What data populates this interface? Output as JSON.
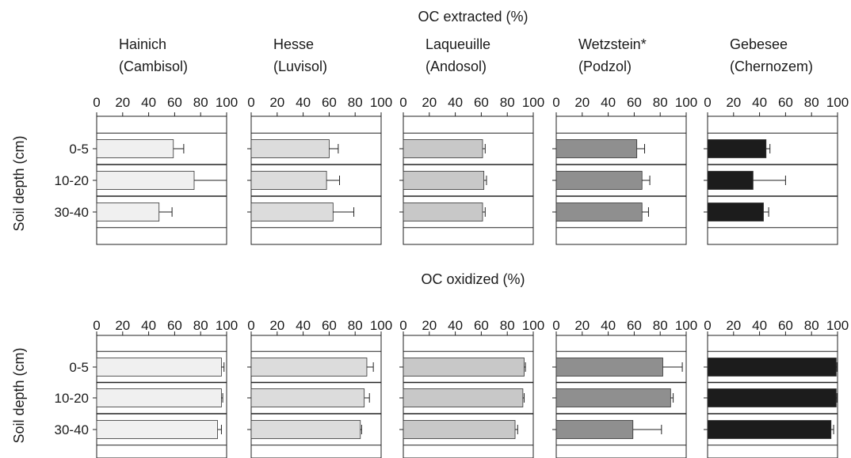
{
  "chart_data": {
    "type": "bar",
    "orientation": "horizontal",
    "ylabel": "Soil depth (cm)",
    "categories": [
      "0-5",
      "10-20",
      "30-40"
    ],
    "xlim": [
      0,
      100
    ],
    "xticks": [
      "0",
      "20",
      "40",
      "60",
      "80",
      "100"
    ],
    "sites": [
      {
        "name": "Hainich",
        "soil": "(Cambisol)",
        "color": "#f0f0f0"
      },
      {
        "name": "Hesse",
        "soil": "(Luvisol)",
        "color": "#dcdcdc"
      },
      {
        "name": "Laqueuille",
        "soil": "(Andosol)",
        "color": "#c8c8c8"
      },
      {
        "name": "Wetzstein*",
        "soil": "(Podzol)",
        "color": "#8f8f8f"
      },
      {
        "name": "Gebesee",
        "soil": "(Chernozem)",
        "color": "#1c1c1c"
      }
    ],
    "panels": [
      {
        "title": "OC extracted (%)",
        "series": [
          {
            "name": "Hainich",
            "values": [
              59,
              75,
              48
            ],
            "errors": [
              8,
              25,
              10
            ]
          },
          {
            "name": "Hesse",
            "values": [
              60,
              58,
              63
            ],
            "errors": [
              7,
              10,
              16
            ]
          },
          {
            "name": "Laqueuille",
            "values": [
              61,
              62,
              61
            ],
            "errors": [
              2,
              2,
              2
            ]
          },
          {
            "name": "Wetzstein*",
            "values": [
              62,
              66,
              66
            ],
            "errors": [
              6,
              6,
              5
            ]
          },
          {
            "name": "Gebesee",
            "values": [
              45,
              35,
              43
            ],
            "errors": [
              3,
              25,
              4
            ]
          }
        ]
      },
      {
        "title": "OC oxidized (%)",
        "series": [
          {
            "name": "Hainich",
            "values": [
              96,
              96,
              93
            ],
            "errors": [
              2,
              1,
              3
            ]
          },
          {
            "name": "Hesse",
            "values": [
              89,
              87,
              84
            ],
            "errors": [
              5,
              4,
              1
            ]
          },
          {
            "name": "Laqueuille",
            "values": [
              93,
              92,
              86
            ],
            "errors": [
              1,
              1,
              2
            ]
          },
          {
            "name": "Wetzstein*",
            "values": [
              82,
              88,
              59
            ],
            "errors": [
              15,
              2,
              22
            ]
          },
          {
            "name": "Gebesee",
            "values": [
              99,
              99,
              95
            ],
            "errors": [
              0.5,
              0.5,
              2
            ]
          }
        ]
      }
    ]
  }
}
